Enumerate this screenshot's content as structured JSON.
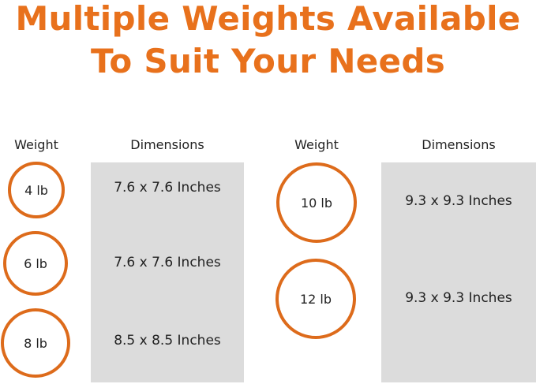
{
  "title": {
    "line1": "Multiple Weights Available",
    "line2": "To Suit Your Needs"
  },
  "accent_color": "#dd6b1b",
  "left_table": {
    "weight_header": "Weight",
    "dimensions_header": "Dimensions",
    "rows": [
      {
        "weight": "4 lb",
        "dimensions": "7.6 x 7.6 Inches"
      },
      {
        "weight": "6 lb",
        "dimensions": "7.6 x 7.6 Inches"
      },
      {
        "weight": "8 lb",
        "dimensions": "8.5 x 8.5 Inches"
      }
    ]
  },
  "right_table": {
    "weight_header": "Weight",
    "dimensions_header": "Dimensions",
    "rows": [
      {
        "weight": "10 lb",
        "dimensions": "9.3 x 9.3 Inches"
      },
      {
        "weight": "12 lb",
        "dimensions": "9.3 x 9.3 Inches"
      }
    ]
  }
}
